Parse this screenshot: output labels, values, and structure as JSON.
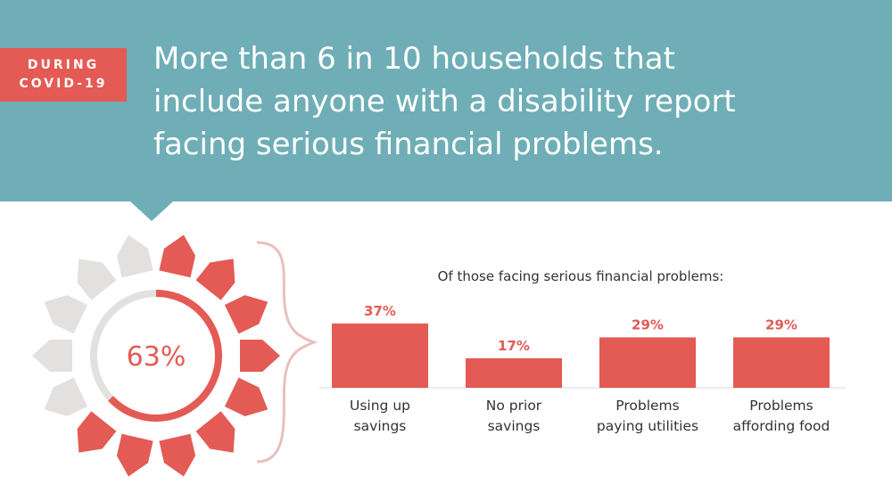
{
  "banner": {
    "tag_lines": [
      "DURING",
      "COVID-19"
    ],
    "headline_lines": [
      "More than 6 in 10 households that",
      "include anyone with a disability report",
      "facing serious financial problems."
    ]
  },
  "colors": {
    "banner": "#6faeb6",
    "accent": "#e45a55",
    "inactive": "#e3e1df",
    "brace": "#e9bfbf"
  },
  "chart_data": [
    {
      "type": "pie",
      "center_label": "63%",
      "value": 63,
      "max": 100
    },
    {
      "type": "bar",
      "title": "Of those facing serious financial problems:",
      "categories": [
        [
          "Using up",
          "savings"
        ],
        [
          "No prior",
          "savings"
        ],
        [
          "Problems",
          "paying utilities"
        ],
        [
          "Problems",
          "affording food"
        ]
      ],
      "values": [
        37,
        17,
        29,
        29
      ],
      "value_labels": [
        "37%",
        "17%",
        "29%",
        "29%"
      ],
      "ylim": [
        0,
        40
      ]
    }
  ]
}
